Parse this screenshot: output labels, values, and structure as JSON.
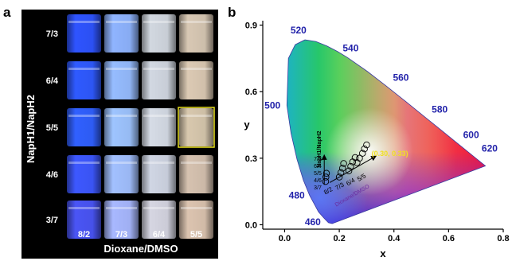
{
  "panel_a": {
    "label": "a",
    "row_axis_label": "NapH1/NapH2",
    "col_axis_label": "Dioxane/DMSO",
    "row_labels": [
      "7/3",
      "6/4",
      "5/5",
      "4/6",
      "3/7"
    ],
    "col_labels": [
      "8/2",
      "7/3",
      "6/4",
      "5/5"
    ],
    "highlight": {
      "row": 2,
      "col": 3,
      "color": "#e8e020"
    },
    "vial_colors": [
      [
        "#2e54ff",
        "#8fb4ff",
        "#d2d8e0",
        "#d8c8b4"
      ],
      [
        "#2f5aff",
        "#96bcff",
        "#d2d8e2",
        "#dccab4"
      ],
      [
        "#3060ff",
        "#9ec4ff",
        "#d6dce6",
        "#d8c8ae"
      ],
      [
        "#3d58ff",
        "#a2c0ff",
        "#d0d6e4",
        "#d6c2b0"
      ],
      [
        "#4a55f5",
        "#a8b8ff",
        "#d6d6e2",
        "#dcc4b0"
      ]
    ]
  },
  "chart_data": {
    "type": "scatter",
    "panel_label": "b",
    "xlabel": "x",
    "ylabel": "y",
    "xlim": [
      -0.08,
      0.8
    ],
    "ylim": [
      -0.02,
      0.92
    ],
    "xticks": [
      0.0,
      0.2,
      0.4,
      0.6,
      0.8
    ],
    "yticks": [
      0.0,
      0.3,
      0.6,
      0.9
    ],
    "xtick_labels": [
      "0.0",
      "0.2",
      "0.4",
      "0.6",
      "0.8"
    ],
    "ytick_labels": [
      "0.0",
      "0.3",
      "0.6",
      "0.9"
    ],
    "spectral_locus": [
      [
        0.1741,
        0.005
      ],
      [
        0.1603,
        0.0089
      ],
      [
        0.144,
        0.0297
      ],
      [
        0.1241,
        0.0578
      ],
      [
        0.0913,
        0.1327
      ],
      [
        0.0687,
        0.2007
      ],
      [
        0.0454,
        0.295
      ],
      [
        0.0235,
        0.4127
      ],
      [
        0.0082,
        0.5384
      ],
      [
        0.0139,
        0.7502
      ],
      [
        0.0389,
        0.812
      ],
      [
        0.0743,
        0.8338
      ],
      [
        0.1142,
        0.8262
      ],
      [
        0.1547,
        0.8059
      ],
      [
        0.1929,
        0.7816
      ],
      [
        0.2296,
        0.7543
      ],
      [
        0.3016,
        0.6923
      ],
      [
        0.3731,
        0.6245
      ],
      [
        0.4441,
        0.5547
      ],
      [
        0.5125,
        0.4866
      ],
      [
        0.5752,
        0.4242
      ],
      [
        0.627,
        0.3725
      ],
      [
        0.6658,
        0.334
      ],
      [
        0.6915,
        0.3083
      ],
      [
        0.7347,
        0.2653
      ]
    ],
    "wavelength_labels": [
      {
        "text": "460",
        "x": 0.144,
        "y": 0.03
      },
      {
        "text": "480",
        "x": 0.091,
        "y": 0.133
      },
      {
        "text": "500",
        "x": 0.008,
        "y": 0.538
      },
      {
        "text": "520",
        "x": 0.074,
        "y": 0.834
      },
      {
        "text": "540",
        "x": 0.23,
        "y": 0.754
      },
      {
        "text": "560",
        "x": 0.373,
        "y": 0.624
      },
      {
        "text": "580",
        "x": 0.512,
        "y": 0.487
      },
      {
        "text": "600",
        "x": 0.627,
        "y": 0.373
      },
      {
        "text": "620",
        "x": 0.692,
        "y": 0.308
      }
    ],
    "series": [
      {
        "points": [
          {
            "x": 0.15,
            "y": 0.195
          },
          {
            "x": 0.151,
            "y": 0.215
          },
          {
            "x": 0.153,
            "y": 0.232
          },
          {
            "x": 0.2,
            "y": 0.215
          },
          {
            "x": 0.206,
            "y": 0.235
          },
          {
            "x": 0.212,
            "y": 0.255
          },
          {
            "x": 0.216,
            "y": 0.276
          },
          {
            "x": 0.235,
            "y": 0.243
          },
          {
            "x": 0.242,
            "y": 0.263
          },
          {
            "x": 0.249,
            "y": 0.283
          },
          {
            "x": 0.258,
            "y": 0.303
          },
          {
            "x": 0.265,
            "y": 0.28
          },
          {
            "x": 0.274,
            "y": 0.3
          },
          {
            "x": 0.285,
            "y": 0.322
          },
          {
            "x": 0.292,
            "y": 0.342
          },
          {
            "x": 0.3,
            "y": 0.36
          }
        ]
      }
    ],
    "annotations": {
      "white_point": {
        "text": "(0.30, 0.33)",
        "color": "#f0e020"
      },
      "napH_arrow_label": "NapH1/NapH2",
      "napH_ratios": [
        "7/3",
        "6/4",
        "5/5",
        "4/6",
        "3/7"
      ],
      "dmso_arrow_label": "Dioxane/DMSO",
      "dmso_ratios": [
        "8/2",
        "7/3",
        "6/4",
        "5/5"
      ]
    },
    "colors": {
      "axis": "#000000",
      "wavelength_text": "#2222aa",
      "marker": "#000000"
    }
  }
}
